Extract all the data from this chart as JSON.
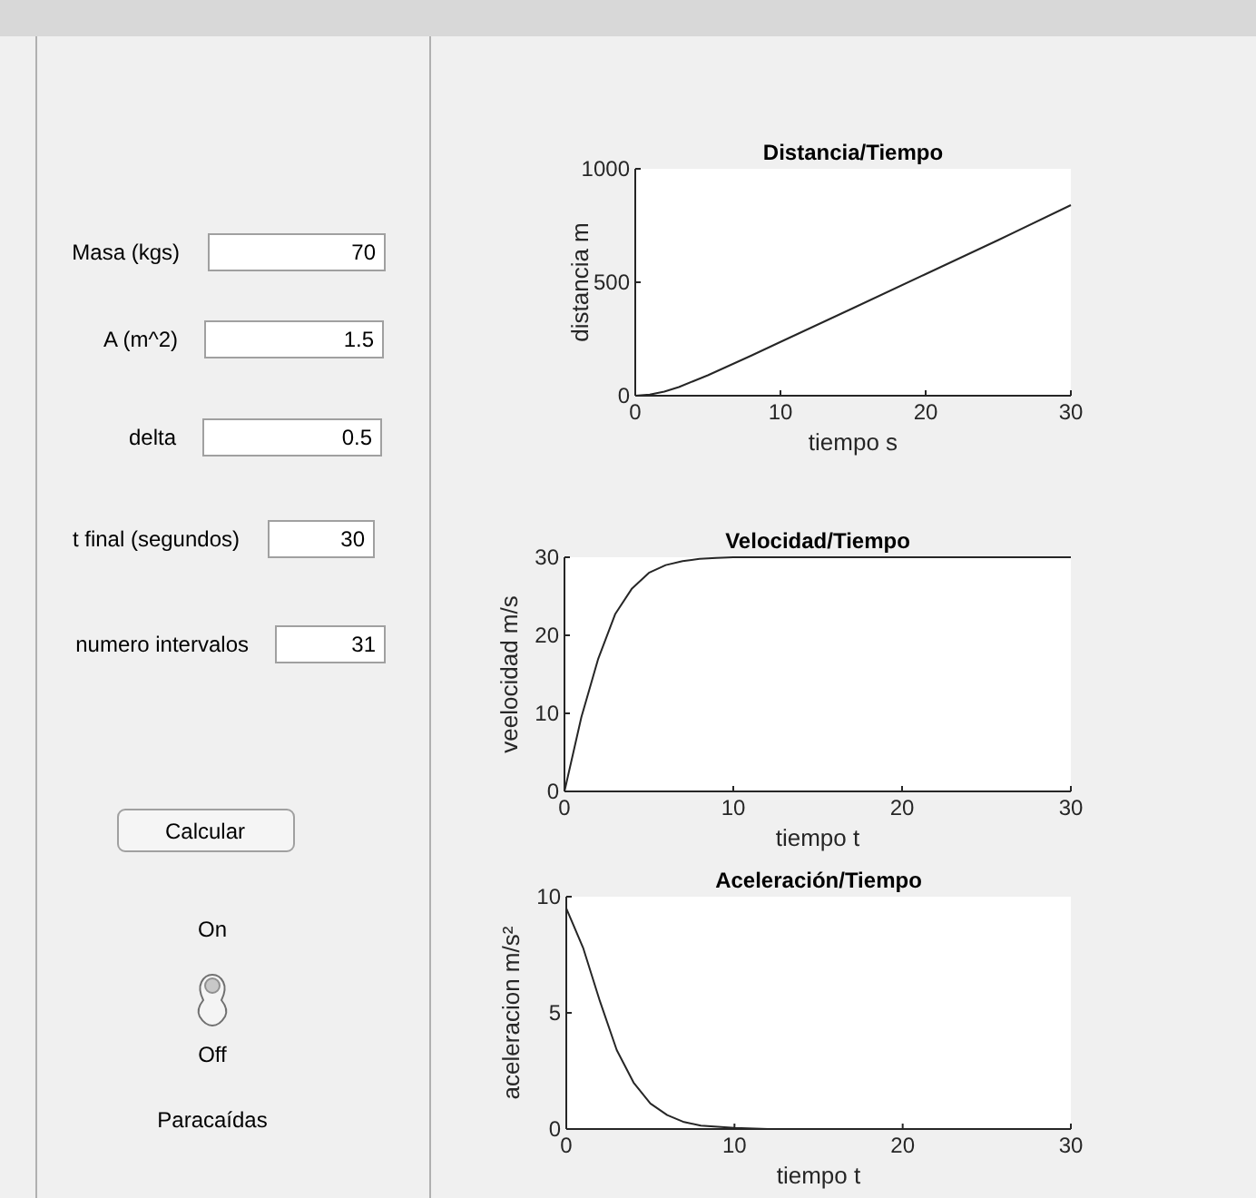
{
  "chart_data": [
    {
      "type": "other",
      "annotations": [
        "Masa (kgs)",
        "70",
        "A (m^2)",
        "1.5",
        "delta",
        "0.5",
        "t final (segundos)",
        "30",
        "numero intervalos",
        "31",
        "Calcular",
        "On",
        "Off",
        "Paracaídas"
      ]
    },
    {
      "type": "line",
      "title": "Distancia/Tiempo",
      "xlabel": "tiempo s",
      "ylabel": "distancia m",
      "x": [
        0,
        1,
        2,
        3,
        4,
        5,
        6,
        8,
        10,
        15,
        20,
        25,
        30
      ],
      "series": [
        {
          "color": "#262626",
          "values": [
            0,
            5,
            18,
            38,
            64,
            90,
            119,
            177,
            237,
            386,
            536,
            686,
            840
          ]
        }
      ],
      "xlim": [
        0,
        30
      ],
      "ylim": [
        0,
        1000
      ],
      "xticks": [
        0,
        10,
        20,
        30
      ],
      "yticks": [
        0,
        500,
        1000
      ]
    },
    {
      "type": "line",
      "title": "Velocidad/Tiempo",
      "xlabel": "tiempo t",
      "ylabel": "veelocidad m/s",
      "x": [
        0,
        1,
        2,
        3,
        4,
        5,
        6,
        7,
        8,
        9,
        10,
        15,
        20,
        25,
        30
      ],
      "series": [
        {
          "color": "#262626",
          "values": [
            0,
            9.5,
            17,
            22.7,
            26,
            28,
            29,
            29.5,
            29.8,
            29.9,
            30,
            30,
            30,
            30,
            30
          ]
        }
      ],
      "xlim": [
        0,
        30
      ],
      "ylim": [
        0,
        30
      ],
      "xticks": [
        0,
        10,
        20,
        30
      ],
      "yticks": [
        0,
        10,
        20,
        30
      ]
    },
    {
      "type": "line",
      "title": "Aceleración/Tiempo",
      "xlabel": "tiempo t",
      "ylabel": "aceleracion  m/s²",
      "x": [
        0,
        1,
        2,
        3,
        4,
        5,
        6,
        7,
        8,
        10,
        12,
        15,
        20,
        25,
        30
      ],
      "series": [
        {
          "color": "#262626",
          "values": [
            9.5,
            7.8,
            5.5,
            3.4,
            2,
            1.1,
            0.6,
            0.3,
            0.15,
            0.05,
            0,
            0,
            0,
            0,
            0
          ]
        }
      ],
      "xlim": [
        0,
        30
      ],
      "ylim": [
        0,
        10
      ],
      "xticks": [
        0,
        10,
        20,
        30
      ],
      "yticks": [
        0,
        5,
        10
      ]
    }
  ]
}
